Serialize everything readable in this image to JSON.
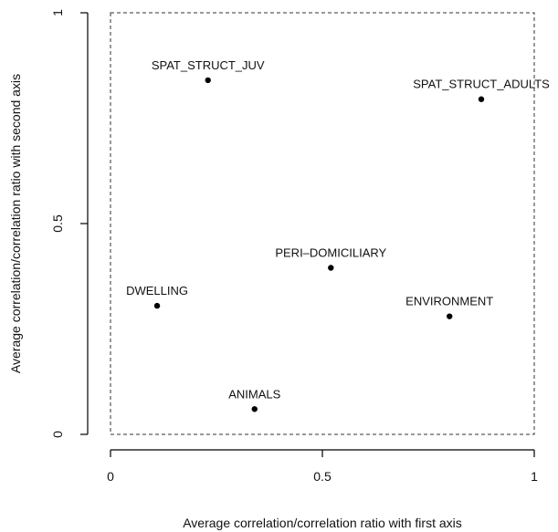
{
  "chart_data": {
    "type": "scatter",
    "title": "",
    "xlabel": "Average correlation/correlation ratio with first axis",
    "ylabel": "Average correlation/correlation ratio with second axis",
    "xlim": [
      0,
      1
    ],
    "ylim": [
      0,
      1
    ],
    "xticks": [
      "0",
      "0.5",
      "1"
    ],
    "yticks": [
      "0",
      "0.5",
      "1"
    ],
    "xtick_values": [
      0,
      0.5,
      1
    ],
    "ytick_values": [
      0,
      0.5,
      1
    ],
    "grid": false,
    "frame": "dashed",
    "points": [
      {
        "label": "SPAT_STRUCT_JUV",
        "x": 0.23,
        "y": 0.84
      },
      {
        "label": "SPAT_STRUCT_ADULTS",
        "x": 0.875,
        "y": 0.795
      },
      {
        "label": "PERI–DOMICILIARY",
        "x": 0.52,
        "y": 0.395
      },
      {
        "label": "DWELLING",
        "x": 0.11,
        "y": 0.305
      },
      {
        "label": "ENVIRONMENT",
        "x": 0.8,
        "y": 0.28
      },
      {
        "label": "ANIMALS",
        "x": 0.34,
        "y": 0.06
      }
    ]
  }
}
